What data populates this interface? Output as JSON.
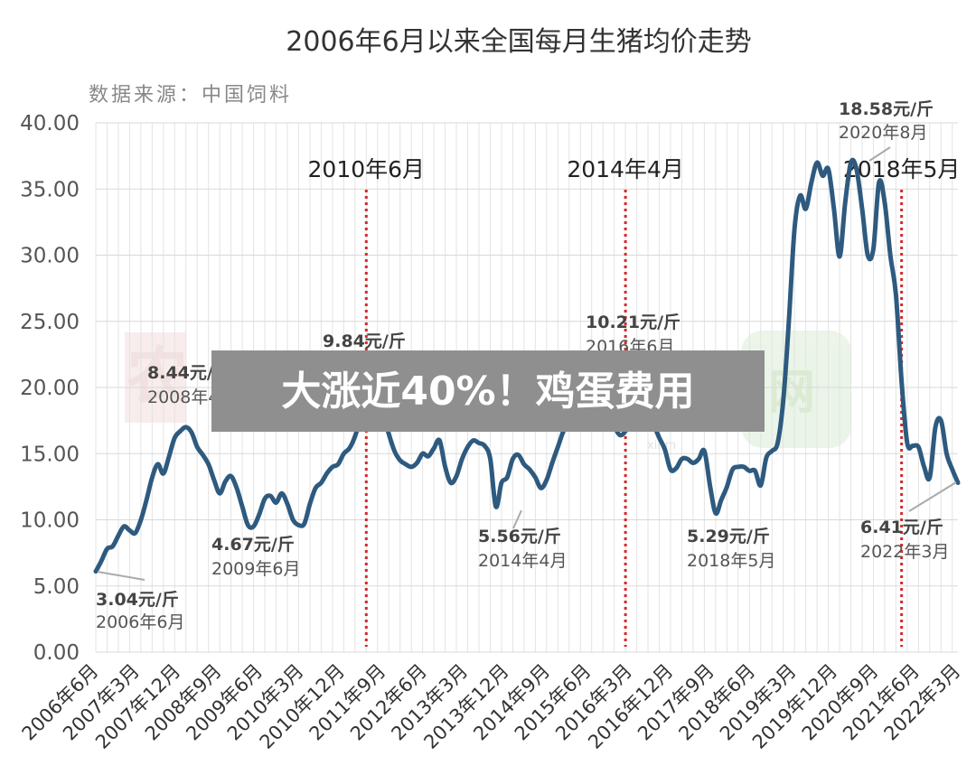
{
  "chart_data": {
    "type": "line",
    "title": "2006年6月以来全国每月生猪均价走势",
    "subtitle": "数据来源：中国饲料",
    "ylim": [
      0,
      40
    ],
    "yticks": [
      "0.00",
      "5.00",
      "10.00",
      "15.00",
      "20.00",
      "25.00",
      "30.00",
      "35.00",
      "40.00"
    ],
    "xtick_labels": [
      "2006年6月",
      "2007年3月",
      "2007年12月",
      "2008年9月",
      "2009年6月",
      "2010年3月",
      "2010年12月",
      "2011年9月",
      "2012年6月",
      "2013年3月",
      "2013年12月",
      "2014年9月",
      "2015年6月",
      "2016年3月",
      "2016年12月",
      "2017年9月",
      "2018年6月",
      "2019年3月",
      "2019年12月",
      "2020年9月",
      "2021年6月",
      "2022年3月"
    ],
    "grid": true,
    "line_color": "#2e5a7f",
    "marker_color": "#d62828",
    "series": [
      {
        "values": [
          6.1,
          6.9,
          7.8,
          8.0,
          8.8,
          9.5,
          9.2,
          9.0,
          10.0,
          11.5,
          13.2,
          14.2,
          13.5,
          14.8,
          16.2,
          16.7,
          17.0,
          16.6,
          15.5,
          14.9,
          14.2,
          13.0,
          12.0,
          12.9,
          13.3,
          12.4,
          11.0,
          9.6,
          9.5,
          10.4,
          11.6,
          11.8,
          11.3,
          12.0,
          11.2,
          10.0,
          9.6,
          9.7,
          11.2,
          12.4,
          12.8,
          13.5,
          14.0,
          14.2,
          15.0,
          15.4,
          16.3,
          17.8,
          19.6,
          19.7,
          19.5,
          18.0,
          16.5,
          15.2,
          14.5,
          14.2,
          14.0,
          14.3,
          15.0,
          14.8,
          15.4,
          16.0,
          14.0,
          12.8,
          13.3,
          14.6,
          15.5,
          16.0,
          15.8,
          15.6,
          14.6,
          11.0,
          12.8,
          13.2,
          14.6,
          14.9,
          14.2,
          13.8,
          13.2,
          12.4,
          13.0,
          14.3,
          15.5,
          16.7,
          17.3,
          18.5,
          18.7,
          18.2,
          17.8,
          18.4,
          17.8,
          17.1,
          17.0,
          16.4,
          16.7,
          17.6,
          18.8,
          18.6,
          18.1,
          17.2,
          16.2,
          15.3,
          13.8,
          13.9,
          14.6,
          14.6,
          14.3,
          14.6,
          15.2,
          12.6,
          10.5,
          11.5,
          12.5,
          13.8,
          14.0,
          14.0,
          13.7,
          13.7,
          12.6,
          14.7,
          15.2,
          15.8,
          19.0,
          25.0,
          32.0,
          34.5,
          33.5,
          35.5,
          37.0,
          36.0,
          36.5,
          33.5,
          29.9,
          34.0,
          37.0,
          36.5,
          33.5,
          30.0,
          30.5,
          35.5,
          34.0,
          30.0,
          27.0,
          20.5,
          15.8,
          15.6,
          15.5,
          14.0,
          13.2,
          17.0,
          17.5,
          15.0,
          13.8,
          12.8
        ]
      }
    ],
    "period_markers": [
      {
        "label": "2010年6月",
        "index": 48
      },
      {
        "label": "2014年4月",
        "index": 94
      },
      {
        "label": "2018年5月",
        "index": 143
      }
    ],
    "annotations": [
      {
        "price": "3.04元/斤",
        "date": "2006年6月"
      },
      {
        "price": "8.44元/斤",
        "date": "2008年4月"
      },
      {
        "price": "4.67元/斤",
        "date": "2009年6月"
      },
      {
        "price": "9.84元/斤",
        "date": ""
      },
      {
        "price": "5.56元/斤",
        "date": "2014年4月"
      },
      {
        "price": "10.21元/斤",
        "date": "2016年6月"
      },
      {
        "price": "5.29元/斤",
        "date": "2018年5月"
      },
      {
        "price": "18.58元/斤",
        "date": "2020年8月"
      },
      {
        "price": "6.41元/斤",
        "date": "2022年3月"
      }
    ]
  },
  "overlay": {
    "text": "大涨近40%！鸡蛋费用"
  },
  "watermark": {
    "left_text": "农",
    "right_text": "网",
    "small_text": "xinm"
  }
}
